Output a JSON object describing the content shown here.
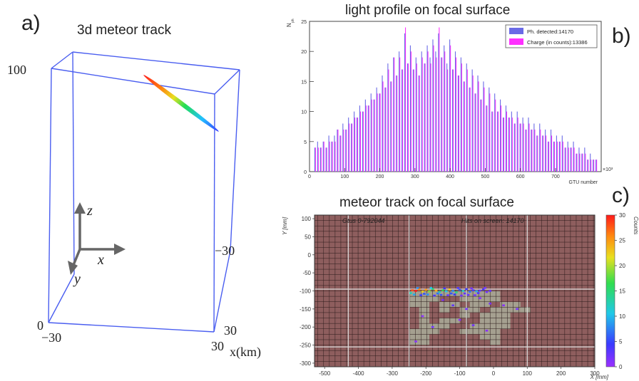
{
  "panels": {
    "a": {
      "letter": "a)",
      "title": "3d meteor track"
    },
    "b": {
      "letter": "b)",
      "title": "light profile on focal surface"
    },
    "c": {
      "letter": "c)",
      "title": "meteor track on focal surface"
    }
  },
  "axis3d": {
    "z_top": "100",
    "z_bottom": "0",
    "left_front": "−30",
    "right_back": "−30",
    "right_front": "30",
    "bottom_front": "30",
    "axis_unit": "x(km)",
    "x_arrow": "x",
    "y_arrow": "y",
    "z_arrow": "z",
    "box_color": "#4a5ef0"
  },
  "chart_data": [
    {
      "type": "line",
      "panel": "a",
      "title": "3d meteor track",
      "track_colors": [
        "#3a3aff",
        "#22c0ff",
        "#22dd55",
        "#e8e020",
        "#ff7a10",
        "#ff2020"
      ]
    },
    {
      "type": "bar",
      "panel": "b",
      "title": "light profile on focal surface",
      "xlabel": "GTU number",
      "ylabel": "N",
      "ylabel_sub": "ph",
      "x_exponent": "×10³",
      "xlim": [
        0,
        830
      ],
      "ylim": [
        0,
        25
      ],
      "xticks": [
        0,
        100,
        200,
        300,
        400,
        500,
        600,
        700
      ],
      "yticks": [
        0,
        5,
        10,
        15,
        20,
        25
      ],
      "x": [
        15,
        23,
        31,
        39,
        47,
        55,
        63,
        71,
        79,
        87,
        95,
        103,
        111,
        119,
        127,
        135,
        143,
        151,
        159,
        167,
        175,
        183,
        191,
        199,
        207,
        215,
        223,
        231,
        239,
        247,
        255,
        263,
        271,
        279,
        287,
        295,
        303,
        311,
        319,
        327,
        335,
        343,
        351,
        359,
        367,
        375,
        383,
        391,
        399,
        407,
        415,
        423,
        431,
        439,
        447,
        455,
        463,
        471,
        479,
        487,
        495,
        503,
        511,
        519,
        527,
        535,
        543,
        551,
        559,
        567,
        575,
        583,
        591,
        599,
        607,
        615,
        623,
        631,
        639,
        647,
        655,
        663,
        671,
        679,
        687,
        695,
        703,
        711,
        719,
        727,
        735,
        743,
        751,
        759,
        767,
        775,
        783,
        791,
        799,
        807,
        815
      ],
      "series": [
        {
          "name": "Ph. detected:14170",
          "color": "#6a6ae6",
          "values": [
            4,
            5,
            4,
            5,
            4,
            6,
            5,
            6,
            7,
            6,
            8,
            7,
            9,
            8,
            10,
            9,
            11,
            10,
            12,
            11,
            13,
            12,
            14,
            13,
            16,
            14,
            18,
            15,
            19,
            16,
            20,
            17,
            23,
            18,
            21,
            17,
            19,
            16,
            20,
            18,
            21,
            19,
            22,
            20,
            23,
            19,
            21,
            18,
            22,
            17,
            20,
            16,
            19,
            15,
            18,
            14,
            17,
            13,
            16,
            12,
            15,
            11,
            14,
            10,
            13,
            10,
            12,
            9,
            11,
            9,
            10,
            8,
            10,
            8,
            9,
            7,
            9,
            7,
            8,
            6,
            8,
            6,
            7,
            5,
            7,
            5,
            6,
            5,
            6,
            4,
            5,
            4,
            5,
            3,
            4,
            3,
            4,
            2,
            3,
            2,
            2
          ]
        },
        {
          "name": "Charge (in counts):13386",
          "color": "#ff30ff",
          "values": [
            4,
            4,
            4,
            5,
            4,
            5,
            5,
            5,
            7,
            6,
            7,
            7,
            8,
            8,
            9,
            9,
            10,
            10,
            11,
            11,
            12,
            12,
            13,
            13,
            15,
            14,
            17,
            15,
            19,
            16,
            19,
            17,
            24,
            18,
            20,
            17,
            18,
            16,
            19,
            18,
            20,
            18,
            21,
            19,
            24,
            19,
            20,
            17,
            21,
            17,
            19,
            16,
            18,
            15,
            17,
            14,
            16,
            13,
            15,
            12,
            14,
            11,
            13,
            10,
            12,
            10,
            11,
            9,
            10,
            9,
            9,
            8,
            9,
            8,
            8,
            7,
            8,
            7,
            7,
            6,
            7,
            6,
            6,
            5,
            6,
            5,
            5,
            5,
            5,
            4,
            4,
            4,
            4,
            3,
            3,
            3,
            3,
            2,
            2,
            2,
            2
          ]
        }
      ],
      "legend": [
        {
          "label": "Ph. detected:14170",
          "color": "#6a6ae6"
        },
        {
          "label": "Charge (in counts):13386",
          "color": "#ff30ff"
        }
      ],
      "legend_position": "top-right"
    },
    {
      "type": "heatmap",
      "panel": "c",
      "title": "meteor track on focal surface",
      "xlabel": "X [mm]",
      "ylabel": "Y [mm]",
      "xlim": [
        -530,
        300
      ],
      "ylim": [
        -310,
        110
      ],
      "xticks": [
        -500,
        -400,
        -300,
        -200,
        -100,
        0,
        100,
        200,
        300
      ],
      "yticks": [
        -300,
        -250,
        -200,
        -150,
        -100,
        -50,
        0,
        50,
        100
      ],
      "annotation_left": "Gtus 0-792044",
      "annotation_right": "Hits on screen: 14170",
      "colorbar": {
        "label": "Counts",
        "range": [
          0,
          30
        ],
        "ticks": [
          0,
          5,
          10,
          15,
          20,
          25,
          30
        ]
      },
      "background_color": "#8e5e5e",
      "grid": true,
      "active_pixels": [
        [
          -250,
          -100,
          0
        ],
        [
          -220,
          -100,
          0
        ],
        [
          -190,
          -100,
          0
        ],
        [
          -160,
          -100,
          0
        ],
        [
          -130,
          -100,
          0
        ],
        [
          -100,
          -100,
          0
        ],
        [
          -70,
          -100,
          0
        ],
        [
          -40,
          -100,
          0
        ],
        [
          -10,
          -100,
          0
        ],
        [
          -250,
          -115,
          0
        ],
        [
          -220,
          -115,
          0
        ],
        [
          -190,
          -115,
          0
        ],
        [
          -100,
          -115,
          0
        ],
        [
          -70,
          -115,
          0
        ],
        [
          -40,
          -115,
          0
        ],
        [
          -10,
          -115,
          0
        ],
        [
          -250,
          -130,
          0
        ],
        [
          -220,
          -130,
          0
        ],
        [
          -160,
          -130,
          0
        ],
        [
          -130,
          -130,
          0
        ],
        [
          -70,
          -130,
          0
        ],
        [
          -40,
          -130,
          0
        ],
        [
          20,
          -130,
          0
        ],
        [
          50,
          -130,
          0
        ],
        [
          -220,
          -145,
          0
        ],
        [
          -160,
          -145,
          0
        ],
        [
          -100,
          -145,
          0
        ],
        [
          -70,
          -145,
          0
        ],
        [
          -10,
          -145,
          0
        ],
        [
          20,
          -145,
          0
        ],
        [
          50,
          -145,
          0
        ],
        [
          80,
          -145,
          0
        ],
        [
          -220,
          -160,
          0
        ],
        [
          -100,
          -160,
          0
        ],
        [
          -40,
          -160,
          0
        ],
        [
          -10,
          -160,
          0
        ],
        [
          20,
          -160,
          0
        ],
        [
          -220,
          -175,
          0
        ],
        [
          -160,
          -175,
          0
        ],
        [
          -130,
          -175,
          0
        ],
        [
          -40,
          -175,
          0
        ],
        [
          -10,
          -175,
          0
        ],
        [
          20,
          -175,
          0
        ],
        [
          -220,
          -190,
          0
        ],
        [
          -190,
          -190,
          0
        ],
        [
          -160,
          -190,
          0
        ],
        [
          -70,
          -190,
          0
        ],
        [
          -40,
          -190,
          0
        ],
        [
          -10,
          -190,
          0
        ],
        [
          20,
          -190,
          0
        ],
        [
          -250,
          -205,
          0
        ],
        [
          -220,
          -205,
          0
        ],
        [
          -190,
          -205,
          0
        ],
        [
          -100,
          -205,
          0
        ],
        [
          -70,
          -205,
          0
        ],
        [
          -40,
          -205,
          0
        ],
        [
          -10,
          -205,
          0
        ],
        [
          -250,
          -220,
          0
        ],
        [
          -220,
          -220,
          0
        ],
        [
          -40,
          -220,
          0
        ],
        [
          -10,
          -220,
          0
        ],
        [
          -250,
          -235,
          0
        ],
        [
          -220,
          -235,
          0
        ],
        [
          -10,
          -235,
          0
        ]
      ],
      "hits": [
        [
          -240,
          -98,
          28
        ],
        [
          -230,
          -100,
          30
        ],
        [
          -220,
          -96,
          26
        ],
        [
          -210,
          -102,
          22
        ],
        [
          -200,
          -97,
          25
        ],
        [
          -190,
          -101,
          18
        ],
        [
          -180,
          -95,
          15
        ],
        [
          -170,
          -99,
          24
        ],
        [
          -160,
          -103,
          12
        ],
        [
          -150,
          -98,
          16
        ],
        [
          -140,
          -101,
          10
        ],
        [
          -130,
          -96,
          22
        ],
        [
          -120,
          -100,
          8
        ],
        [
          -110,
          -104,
          14
        ],
        [
          -100,
          -97,
          6
        ],
        [
          -90,
          -100,
          11
        ],
        [
          -80,
          -95,
          5
        ],
        [
          -70,
          -102,
          7
        ],
        [
          -60,
          -98,
          4
        ],
        [
          -50,
          -101,
          9
        ],
        [
          -40,
          -99,
          3
        ],
        [
          -30,
          -96,
          5
        ],
        [
          -20,
          -103,
          2
        ],
        [
          -10,
          -100,
          3
        ],
        [
          -245,
          -106,
          12
        ],
        [
          -225,
          -92,
          8
        ],
        [
          -205,
          -108,
          6
        ],
        [
          -185,
          -92,
          10
        ],
        [
          -165,
          -107,
          7
        ],
        [
          -145,
          -93,
          5
        ],
        [
          -125,
          -107,
          6
        ],
        [
          -105,
          -92,
          4
        ],
        [
          -85,
          -107,
          3
        ],
        [
          -65,
          -93,
          2
        ],
        [
          -45,
          -106,
          4
        ],
        [
          -25,
          -92,
          2
        ],
        [
          -235,
          -110,
          9
        ],
        [
          -215,
          -112,
          5
        ],
        [
          -195,
          -110,
          8
        ],
        [
          -175,
          -113,
          4
        ],
        [
          -155,
          -111,
          6
        ],
        [
          -135,
          -112,
          3
        ],
        [
          -115,
          -110,
          5
        ],
        [
          -95,
          -113,
          2
        ],
        [
          -75,
          -111,
          3
        ],
        [
          -55,
          -112,
          2
        ],
        [
          -150,
          -125,
          2
        ],
        [
          -120,
          -140,
          3
        ],
        [
          -80,
          -150,
          2
        ],
        [
          -40,
          -120,
          1
        ],
        [
          -10,
          -135,
          2
        ],
        [
          30,
          -140,
          1
        ],
        [
          70,
          -150,
          2
        ],
        [
          -210,
          -170,
          1
        ],
        [
          -180,
          -200,
          2
        ],
        [
          -100,
          -180,
          1
        ],
        [
          -60,
          -195,
          2
        ],
        [
          -20,
          -210,
          1
        ],
        [
          -230,
          -240,
          1
        ]
      ]
    }
  ]
}
